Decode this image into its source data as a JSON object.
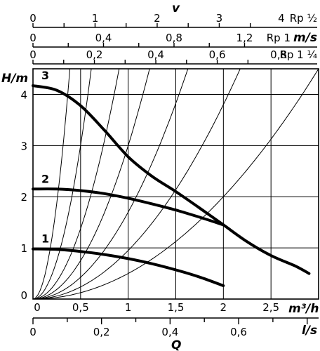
{
  "chart_data": {
    "type": "line",
    "title": "",
    "ylabel": "H/m",
    "xlabel": "Q",
    "x_unit": "m³/h",
    "ylim": [
      0,
      4.5
    ],
    "xlim": [
      0,
      3
    ],
    "y_ticks": [
      "0",
      "1",
      "2",
      "3",
      "4"
    ],
    "x_ticks": [
      "0",
      "0,5",
      "1",
      "1,5",
      "2",
      "2,5"
    ],
    "bottom_scale": {
      "unit": "l/s",
      "ticks": [
        "0",
        "0,2",
        "0,4",
        "0,6"
      ]
    },
    "top_scales": {
      "symbol": "v",
      "rows": [
        {
          "unit": "Rp ½",
          "ticks": [
            "0",
            "1",
            "2",
            "3",
            "4"
          ]
        },
        {
          "unit": "Rp 1",
          "unit_suffix": "m/s",
          "ticks": [
            "0",
            "0,4",
            "0,8",
            "1,2"
          ]
        },
        {
          "unit": "Rp 1 ¼",
          "ticks": [
            "0",
            "0,2",
            "0,4",
            "0,6",
            "0,8"
          ]
        }
      ]
    },
    "grid": true,
    "series": [
      {
        "name": "1",
        "x": [
          0,
          0.25,
          0.5,
          0.75,
          1.0,
          1.25,
          1.5,
          1.75,
          2.0
        ],
        "y": [
          0.98,
          0.97,
          0.93,
          0.87,
          0.79,
          0.69,
          0.57,
          0.43,
          0.26
        ]
      },
      {
        "name": "2",
        "x": [
          0,
          0.25,
          0.5,
          0.75,
          1.0,
          1.25,
          1.5,
          1.75,
          2.0
        ],
        "y": [
          2.15,
          2.15,
          2.12,
          2.06,
          1.97,
          1.86,
          1.74,
          1.6,
          1.45
        ]
      },
      {
        "name": "3",
        "x": [
          0,
          0.25,
          0.5,
          0.75,
          1.0,
          1.25,
          1.5,
          1.75,
          2.0,
          2.25,
          2.5,
          2.75,
          2.9
        ],
        "y": [
          4.17,
          4.08,
          3.78,
          3.3,
          2.78,
          2.4,
          2.1,
          1.78,
          1.45,
          1.12,
          0.85,
          0.65,
          0.5
        ]
      }
    ],
    "system_curves_k": [
      30,
      12,
      5.5,
      3,
      1.7,
      0.95,
      0.5
    ]
  }
}
